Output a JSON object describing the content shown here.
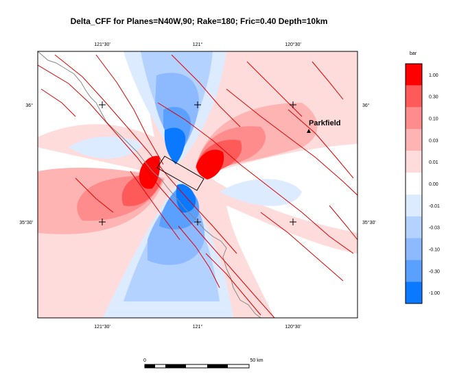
{
  "title": "Delta_CFF for Planes=N40W,90; Rake=180; Fric=0.40 Depth=10km",
  "axes": {
    "top_ticks": [
      "121°30'",
      "121°",
      "120°30'"
    ],
    "bottom_ticks": [
      "121°30'",
      "121°",
      "120°30'"
    ],
    "left_ticks": [
      "36°",
      "35°30'"
    ],
    "right_ticks": [
      "36°",
      "35°30'"
    ]
  },
  "place": {
    "name": "Parkfield",
    "marker": "triangle-icon"
  },
  "colorbar": {
    "unit": "bar",
    "labels": [
      "1.00",
      "0.30",
      "0.10",
      "0.03",
      "0.01",
      "0.00",
      "-0.01",
      "-0.03",
      "-0.10",
      "-0.30",
      "-1.00"
    ],
    "colors": [
      "#ff0000",
      "#ff5a5a",
      "#ff8c8c",
      "#ffb4b4",
      "#ffdcdc",
      "#ffffff",
      "#dcebff",
      "#b4d2ff",
      "#8cb9ff",
      "#5aa0ff",
      "#0a78ff"
    ]
  },
  "scalebar": {
    "start_label": "0",
    "end_label": "50 km"
  },
  "colors": {
    "fault": "#dd0000",
    "coast": "#888888",
    "rupture_box": "#000000"
  }
}
